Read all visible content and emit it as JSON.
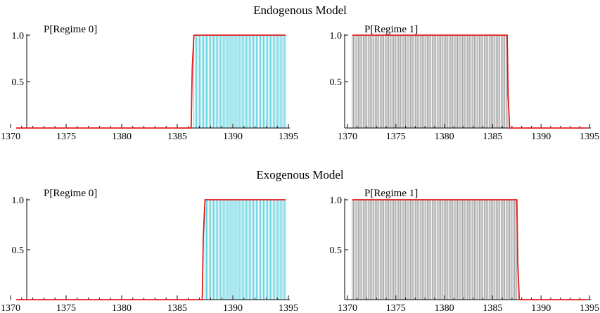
{
  "sections": {
    "endogenous": "Endogenous Model",
    "exogenous": "Exogenous Model"
  },
  "colors": {
    "probability_line": "#e41a1c",
    "regime0_fill": "#33c6d8",
    "regime1_fill": "#8c8c8c",
    "axis": "#000000"
  },
  "chart_data": [
    {
      "type": "area",
      "model": "Endogenous Model",
      "title": "P[Regime 0]",
      "xlim": [
        1370,
        1395
      ],
      "ylim": [
        0,
        1
      ],
      "x_ticks": [
        1370,
        1375,
        1380,
        1385,
        1390,
        1395
      ],
      "y_ticks": [
        0.5,
        1.0
      ],
      "y_tick_labels": [
        "0.5",
        "1.0"
      ],
      "fill_color": "#33c6d8",
      "fill_range": [
        1386.5,
        1394.75
      ],
      "series": [
        {
          "x": [
            1370.5,
            1386.25,
            1386.35,
            1386.5,
            1394.75
          ],
          "y": [
            0.0,
            0.0,
            0.65,
            1.0,
            1.0
          ]
        }
      ]
    },
    {
      "type": "area",
      "model": "Endogenous Model",
      "title": "P[Regime 1]",
      "xlim": [
        1370,
        1395
      ],
      "ylim": [
        0,
        1
      ],
      "x_ticks": [
        1370,
        1375,
        1380,
        1385,
        1390,
        1395
      ],
      "y_ticks": [
        0.5,
        1.0
      ],
      "y_tick_labels": [
        "0.5",
        "1.0"
      ],
      "fill_color": "#8c8c8c",
      "fill_range": [
        1370.5,
        1386.5
      ],
      "series": [
        {
          "x": [
            1370.5,
            1386.5,
            1386.6,
            1386.75,
            1394.75
          ],
          "y": [
            1.0,
            1.0,
            0.35,
            0.0,
            0.0
          ]
        }
      ]
    },
    {
      "type": "area",
      "model": "Exogenous Model",
      "title": "P[Regime 0]",
      "xlim": [
        1370,
        1395
      ],
      "ylim": [
        0,
        1
      ],
      "x_ticks": [
        1370,
        1375,
        1380,
        1385,
        1390,
        1395
      ],
      "y_ticks": [
        0.5,
        1.0
      ],
      "y_tick_labels": [
        "0.5",
        "1.0"
      ],
      "fill_color": "#33c6d8",
      "fill_range": [
        1387.5,
        1394.75
      ],
      "series": [
        {
          "x": [
            1370.5,
            1387.25,
            1387.35,
            1387.5,
            1394.75
          ],
          "y": [
            0.0,
            0.0,
            0.65,
            1.0,
            1.0
          ]
        }
      ]
    },
    {
      "type": "area",
      "model": "Exogenous Model",
      "title": "P[Regime 1]",
      "xlim": [
        1370,
        1395
      ],
      "ylim": [
        0,
        1
      ],
      "x_ticks": [
        1370,
        1375,
        1380,
        1385,
        1390,
        1395
      ],
      "y_ticks": [
        0.5,
        1.0
      ],
      "y_tick_labels": [
        "0.5",
        "1.0"
      ],
      "fill_color": "#8c8c8c",
      "fill_range": [
        1370.5,
        1387.5
      ],
      "series": [
        {
          "x": [
            1370.5,
            1387.5,
            1387.6,
            1387.75,
            1394.75
          ],
          "y": [
            1.0,
            1.0,
            0.35,
            0.0,
            0.0
          ]
        }
      ]
    }
  ]
}
